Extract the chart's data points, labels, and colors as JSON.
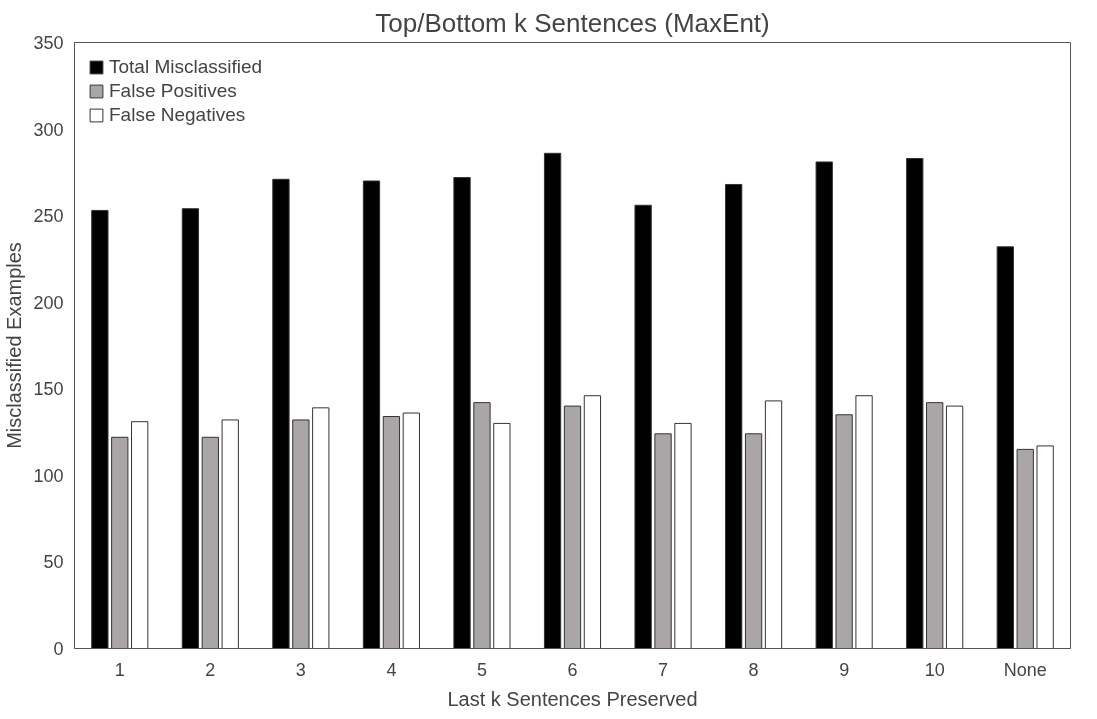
{
  "chart_data": {
    "type": "bar",
    "title": "Top/Bottom k Sentences (MaxEnt)",
    "xlabel": "Last k Sentences Preserved",
    "ylabel": "Misclassified Examples",
    "categories": [
      "1",
      "2",
      "3",
      "4",
      "5",
      "6",
      "7",
      "8",
      "9",
      "10",
      "None"
    ],
    "series": [
      {
        "name": "Total Misclassified",
        "color": "#000000",
        "values": [
          253,
          254,
          271,
          270,
          272,
          286,
          256,
          268,
          281,
          283,
          232
        ]
      },
      {
        "name": "False Positives",
        "color": "#aaa6a7",
        "values": [
          122,
          122,
          132,
          134,
          142,
          140,
          124,
          124,
          135,
          142,
          115
        ]
      },
      {
        "name": "False Negatives",
        "color": "#ffffff",
        "values": [
          131,
          132,
          139,
          136,
          130,
          146,
          130,
          143,
          146,
          140,
          117
        ]
      }
    ],
    "ylim": [
      0,
      350
    ],
    "yticks": [
      0,
      50,
      100,
      150,
      200,
      250,
      300,
      350
    ],
    "grid": false,
    "legend": "top left"
  }
}
